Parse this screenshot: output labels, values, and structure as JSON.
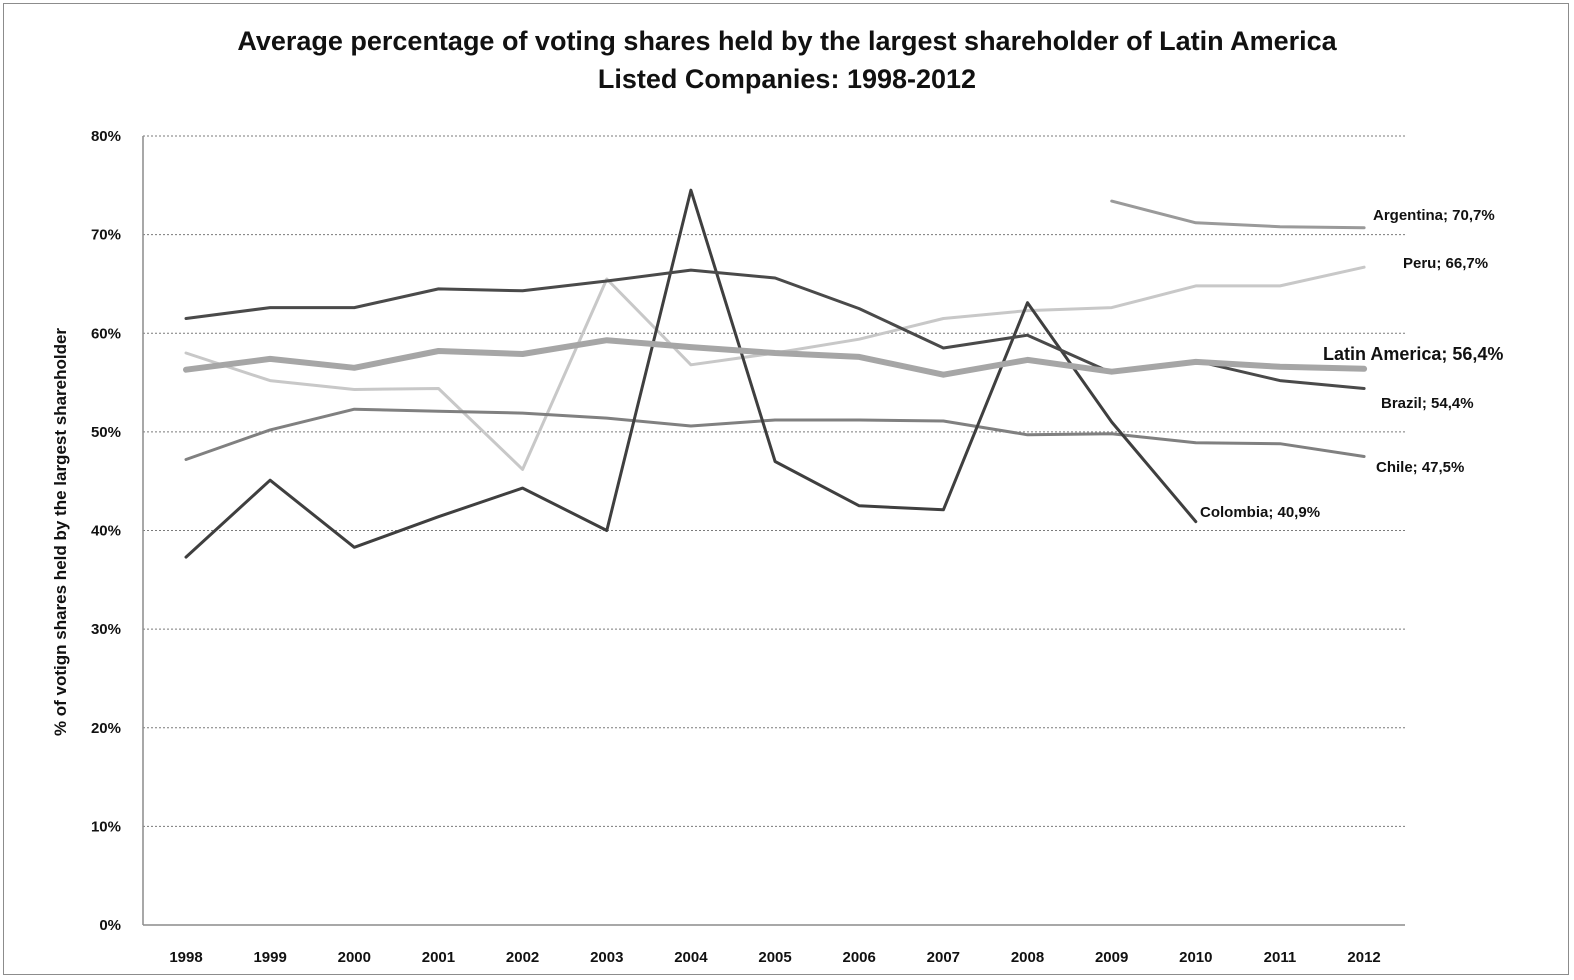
{
  "chart_data": {
    "type": "line",
    "title_line1": "Average percentage of voting shares held by the largest shareholder of Latin America",
    "title_line2": "Listed Companies: 1998-2012",
    "ylabel": "% of votign shares held by the largest shareholder",
    "xlabel": "",
    "ylim": [
      0,
      80
    ],
    "yticks": [
      "0%",
      "10%",
      "20%",
      "30%",
      "40%",
      "50%",
      "60%",
      "70%",
      "80%"
    ],
    "categories": [
      "1998",
      "1999",
      "2000",
      "2001",
      "2002",
      "2003",
      "2004",
      "2005",
      "2006",
      "2007",
      "2008",
      "2009",
      "2010",
      "2011",
      "2012"
    ],
    "grid": true,
    "series": [
      {
        "name": "Argentina",
        "label": "Argentina; 70,7%",
        "color": "#9a9a9a",
        "width": 3,
        "values": [
          null,
          null,
          null,
          null,
          null,
          null,
          null,
          null,
          null,
          null,
          null,
          73.4,
          71.2,
          70.8,
          70.7
        ]
      },
      {
        "name": "Peru",
        "label": "Peru; 66,7%",
        "color": "#c8c8c8",
        "width": 3,
        "values": [
          58.0,
          55.2,
          54.3,
          54.4,
          46.2,
          65.5,
          56.8,
          58.0,
          59.4,
          61.5,
          62.3,
          62.6,
          64.8,
          64.8,
          66.7
        ]
      },
      {
        "name": "Brazil",
        "label": "Brazil; 54,4%",
        "color": "#4a4a4a",
        "width": 3,
        "values": [
          61.5,
          62.6,
          62.6,
          64.5,
          64.3,
          65.3,
          66.4,
          65.6,
          62.5,
          58.5,
          59.8,
          56.0,
          57.2,
          55.2,
          54.4
        ]
      },
      {
        "name": "Chile",
        "label": "Chile; 47,5%",
        "color": "#808080",
        "width": 3,
        "values": [
          47.2,
          50.2,
          52.3,
          52.1,
          51.9,
          51.4,
          50.6,
          51.2,
          51.2,
          51.1,
          49.7,
          49.8,
          48.9,
          48.8,
          47.5
        ]
      },
      {
        "name": "Colombia",
        "label": "Colombia; 40,9%",
        "color": "#3f3f3f",
        "width": 3,
        "values": [
          37.3,
          45.1,
          38.3,
          41.4,
          44.3,
          40.0,
          74.5,
          47.0,
          42.5,
          42.1,
          63.1,
          51.0,
          40.9,
          null,
          null
        ]
      },
      {
        "name": "Latin America",
        "label": "Latin America; 56,4%",
        "color": "#a6a6a6",
        "width": 6,
        "values": [
          56.3,
          57.4,
          56.5,
          58.2,
          57.9,
          59.3,
          58.6,
          58.0,
          57.6,
          55.8,
          57.3,
          56.1,
          57.1,
          56.6,
          56.4
        ]
      }
    ]
  }
}
